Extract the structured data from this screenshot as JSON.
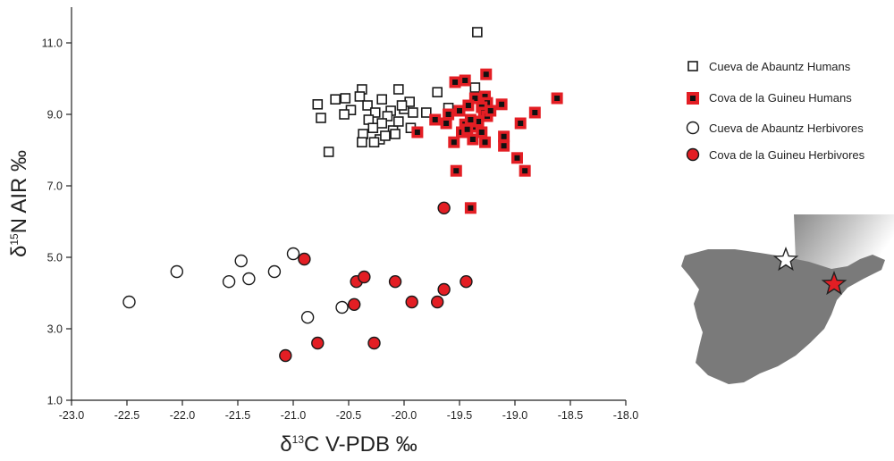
{
  "chart_data": {
    "type": "scatter",
    "title": "",
    "xlabel": {
      "prefix": "δ",
      "sup": "13",
      "main": "C V-PDB ‰"
    },
    "ylabel": {
      "prefix": "δ",
      "sup": "15",
      "main": "N AIR ‰"
    },
    "xlim": [
      -23.0,
      -18.0
    ],
    "ylim": [
      1.0,
      12.0
    ],
    "x_ticks": [
      -23.0,
      -22.5,
      -22.0,
      -21.5,
      -21.0,
      -20.5,
      -20.0,
      -19.5,
      -19.0,
      -18.5,
      -18.0
    ],
    "x_tick_labels": [
      "-23.0",
      "-22.5",
      "-22.0",
      "-21.5",
      "-21.0",
      "-20.5",
      "-20.0",
      "-19.5",
      "-19.0",
      "-18.5",
      "-18.0"
    ],
    "y_ticks": [
      1.0,
      3.0,
      5.0,
      7.0,
      9.0,
      11.0
    ],
    "y_tick_labels": [
      "1.0",
      "3.0",
      "5.0",
      "7.0",
      "9.0",
      "11.0"
    ],
    "grid": false,
    "legend_position": "right",
    "series": [
      {
        "name": "Cueva de Abauntz Humans",
        "marker": "square-open",
        "color": "#1a1a1a",
        "points": [
          [
            -19.34,
            11.3
          ],
          [
            -19.36,
            9.75
          ],
          [
            -19.7,
            9.62
          ],
          [
            -19.6,
            9.18
          ],
          [
            -19.8,
            9.05
          ],
          [
            -20.05,
            9.7
          ],
          [
            -20.38,
            9.7
          ],
          [
            -20.62,
            9.42
          ],
          [
            -20.53,
            9.45
          ],
          [
            -20.48,
            9.12
          ],
          [
            -20.4,
            9.5
          ],
          [
            -20.33,
            9.25
          ],
          [
            -20.26,
            9.05
          ],
          [
            -20.2,
            9.42
          ],
          [
            -20.12,
            9.1
          ],
          [
            -20.0,
            9.15
          ],
          [
            -19.95,
            9.35
          ],
          [
            -19.92,
            9.05
          ],
          [
            -20.15,
            8.95
          ],
          [
            -20.2,
            8.75
          ],
          [
            -20.32,
            8.85
          ],
          [
            -20.28,
            8.62
          ],
          [
            -20.37,
            8.45
          ],
          [
            -20.22,
            8.3
          ],
          [
            -20.1,
            8.55
          ],
          [
            -20.05,
            8.8
          ],
          [
            -19.94,
            8.62
          ],
          [
            -20.02,
            9.25
          ],
          [
            -20.38,
            8.22
          ],
          [
            -20.27,
            8.22
          ],
          [
            -20.54,
            9.0
          ],
          [
            -20.78,
            9.28
          ],
          [
            -20.75,
            8.9
          ],
          [
            -20.68,
            7.95
          ],
          [
            -20.17,
            8.4
          ],
          [
            -20.08,
            8.45
          ]
        ]
      },
      {
        "name": "Cova de la Guineu Humans",
        "marker": "square-red",
        "color": "#e31e24",
        "points": [
          [
            -19.26,
            10.12
          ],
          [
            -19.54,
            9.9
          ],
          [
            -19.45,
            9.95
          ],
          [
            -19.36,
            9.45
          ],
          [
            -19.27,
            9.5
          ],
          [
            -19.25,
            9.32
          ],
          [
            -19.12,
            9.28
          ],
          [
            -19.3,
            9.2
          ],
          [
            -19.42,
            9.25
          ],
          [
            -19.5,
            9.1
          ],
          [
            -19.6,
            9.0
          ],
          [
            -19.72,
            8.85
          ],
          [
            -19.62,
            8.75
          ],
          [
            -19.45,
            8.72
          ],
          [
            -19.38,
            8.65
          ],
          [
            -19.33,
            8.8
          ],
          [
            -19.28,
            9.05
          ],
          [
            -19.4,
            8.85
          ],
          [
            -19.48,
            8.5
          ],
          [
            -19.43,
            8.58
          ],
          [
            -19.38,
            8.3
          ],
          [
            -19.3,
            8.5
          ],
          [
            -19.27,
            8.22
          ],
          [
            -19.55,
            8.22
          ],
          [
            -19.1,
            8.38
          ],
          [
            -19.1,
            8.12
          ],
          [
            -18.95,
            8.75
          ],
          [
            -18.82,
            9.05
          ],
          [
            -18.62,
            9.45
          ],
          [
            -19.88,
            8.5
          ],
          [
            -19.25,
            8.95
          ],
          [
            -19.22,
            9.1
          ],
          [
            -18.98,
            7.78
          ],
          [
            -18.91,
            7.42
          ],
          [
            -19.53,
            7.42
          ],
          [
            -19.4,
            6.38
          ]
        ]
      },
      {
        "name": "Cueva de Abauntz Herbivores",
        "marker": "circle-open",
        "color": "#1a1a1a",
        "points": [
          [
            -22.48,
            3.75
          ],
          [
            -22.05,
            4.6
          ],
          [
            -21.58,
            4.32
          ],
          [
            -21.47,
            4.9
          ],
          [
            -21.4,
            4.4
          ],
          [
            -21.17,
            4.6
          ],
          [
            -21.0,
            5.1
          ],
          [
            -20.87,
            3.32
          ],
          [
            -20.56,
            3.6
          ]
        ]
      },
      {
        "name": "Cova de la Guineu Herbivores",
        "marker": "circle-red",
        "color": "#e31e24",
        "points": [
          [
            -19.64,
            6.38
          ],
          [
            -20.9,
            4.95
          ],
          [
            -20.43,
            4.32
          ],
          [
            -20.36,
            4.45
          ],
          [
            -20.08,
            4.32
          ],
          [
            -19.64,
            4.1
          ],
          [
            -19.44,
            4.32
          ],
          [
            -20.45,
            3.68
          ],
          [
            -19.93,
            3.75
          ],
          [
            -19.7,
            3.75
          ],
          [
            -20.78,
            2.6
          ],
          [
            -20.27,
            2.6
          ],
          [
            -21.07,
            2.25
          ]
        ]
      }
    ]
  },
  "inset_map": {
    "markers": [
      {
        "name": "Cueva de Abauntz",
        "shape": "star",
        "color": "#ffffff"
      },
      {
        "name": "Cova de la Guineu",
        "shape": "star",
        "color": "#e31e24"
      }
    ],
    "land_color": "#7a7a7a"
  }
}
